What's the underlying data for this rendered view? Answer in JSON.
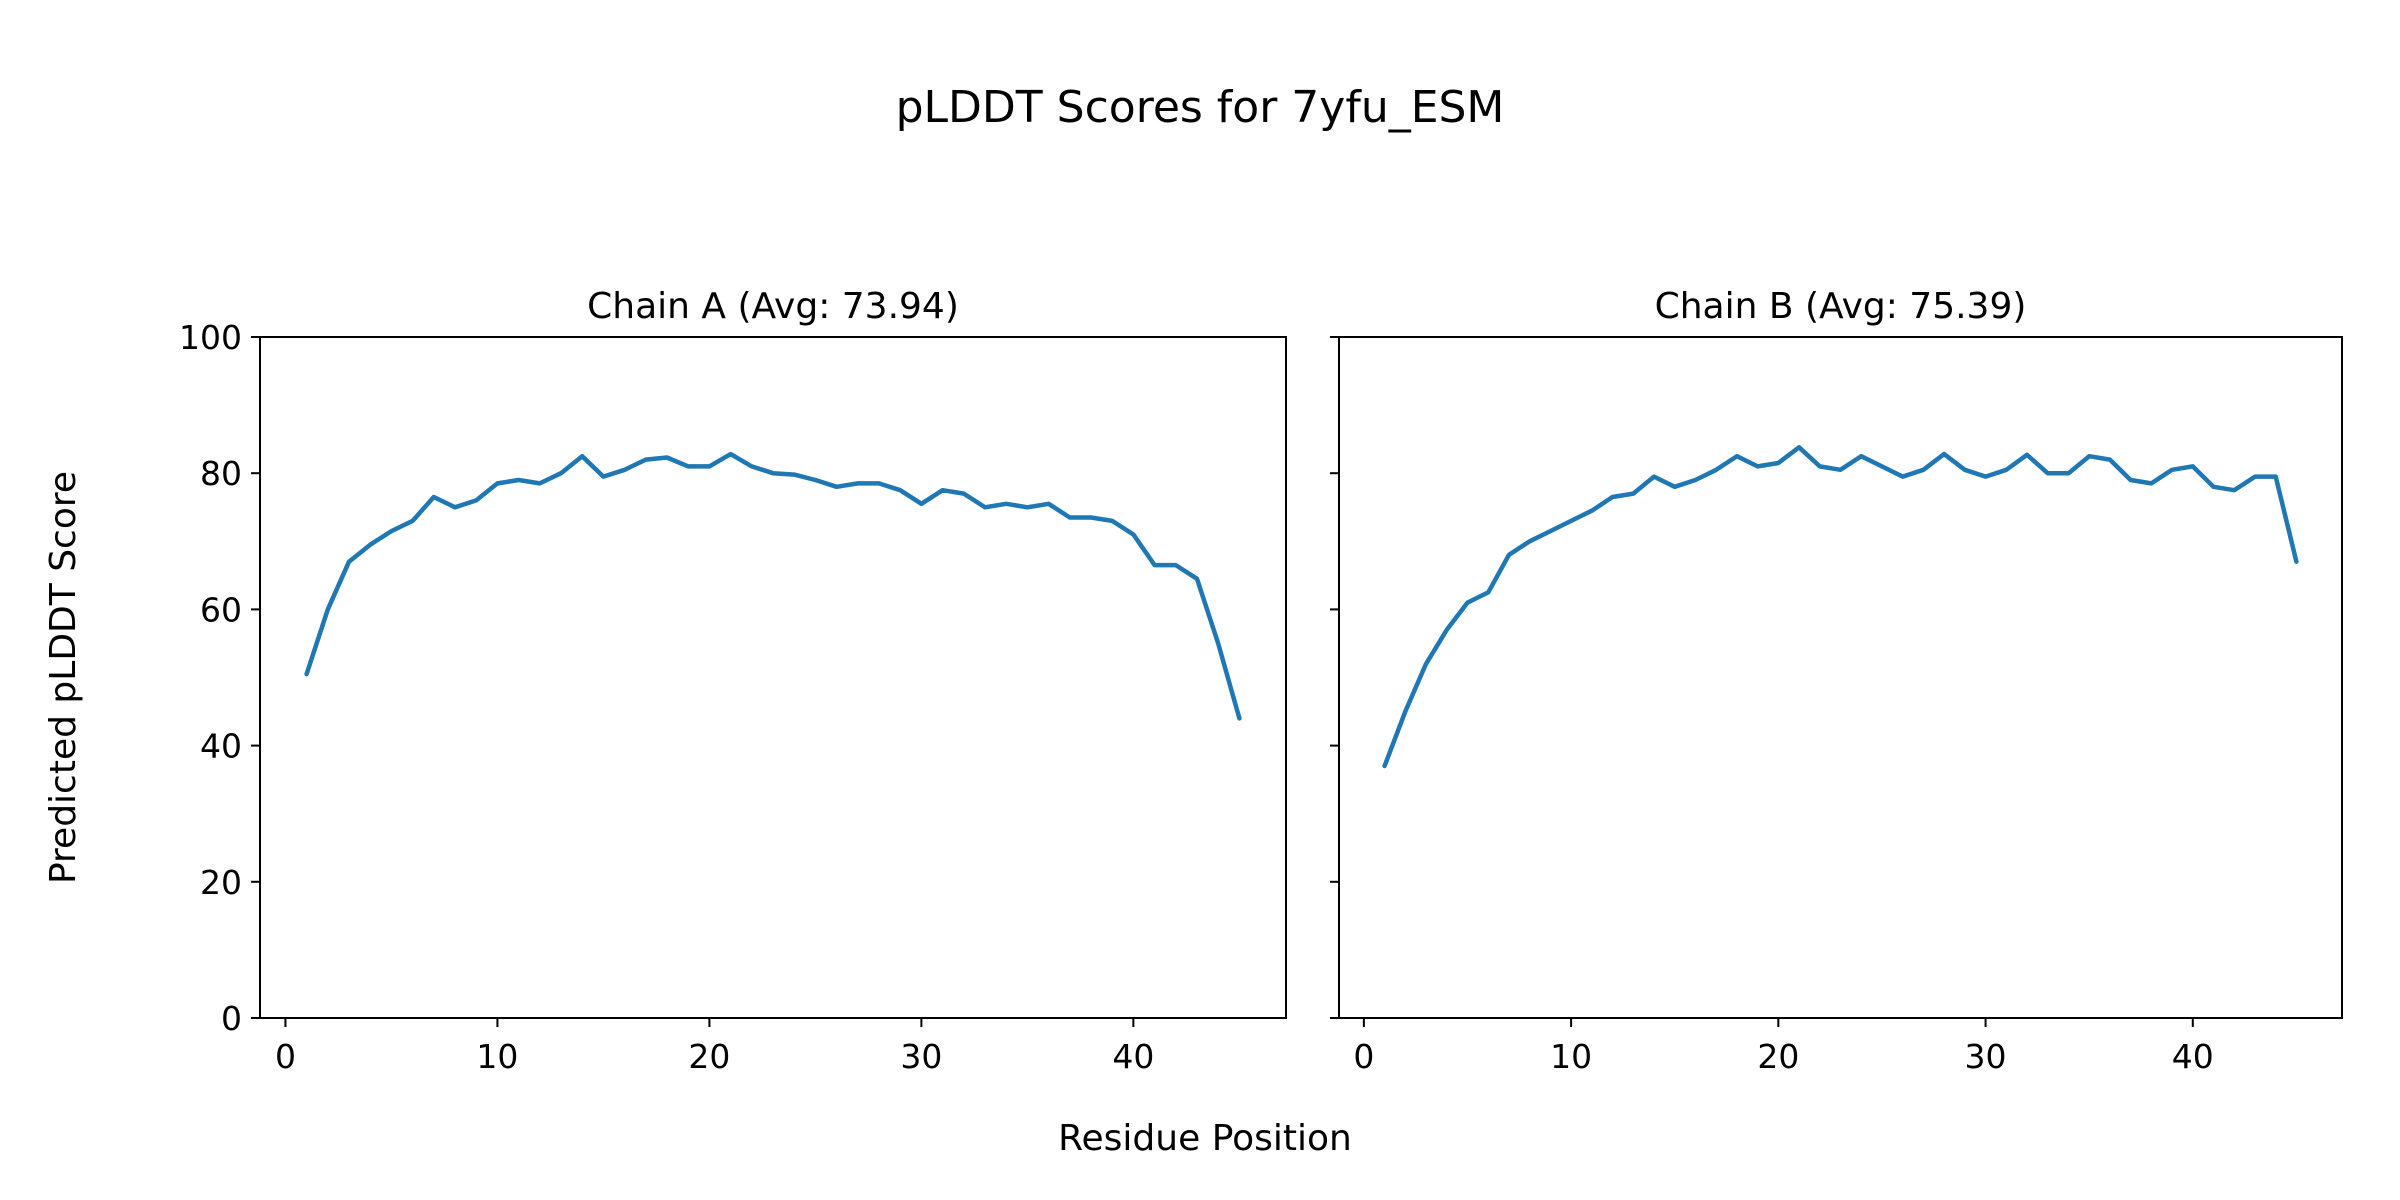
{
  "title": "pLDDT Scores for 7yfu_ESM",
  "chart_data": [
    {
      "type": "line",
      "title": "Chain A (Avg: 73.94)",
      "chain": "A",
      "avg": 73.94,
      "xlabel": "Residue Position",
      "ylabel": "Predicted pLDDT Score",
      "xlim": [
        -1.2,
        47.2
      ],
      "ylim": [
        0,
        100
      ],
      "xticks": [
        0,
        10,
        20,
        30,
        40
      ],
      "yticks": [
        0,
        20,
        40,
        60,
        80,
        100
      ],
      "grid": false,
      "line_color": "#1f77b4",
      "x": [
        1,
        2,
        3,
        4,
        5,
        6,
        7,
        8,
        9,
        10,
        11,
        12,
        13,
        14,
        15,
        16,
        17,
        18,
        19,
        20,
        21,
        22,
        23,
        24,
        25,
        26,
        27,
        28,
        29,
        30,
        31,
        32,
        33,
        34,
        35,
        36,
        37,
        38,
        39,
        40,
        41,
        42,
        43,
        44,
        45
      ],
      "y": [
        50.5,
        60,
        67,
        69.5,
        71.5,
        73,
        76.5,
        75,
        76,
        78.5,
        79,
        78.5,
        80,
        82.5,
        79.5,
        80.5,
        82,
        82.3,
        81,
        81,
        82.8,
        81,
        80,
        79.8,
        79,
        78,
        78.5,
        78.5,
        77.5,
        75.5,
        77.5,
        77,
        75,
        75.5,
        75,
        75.5,
        73.5,
        73.5,
        73,
        71,
        66.5,
        66.5,
        64.5,
        55,
        44
      ]
    },
    {
      "type": "line",
      "title": "Chain B (Avg: 75.39)",
      "chain": "B",
      "avg": 75.39,
      "xlabel": "Residue Position",
      "ylabel": "Predicted pLDDT Score",
      "xlim": [
        -1.2,
        47.2
      ],
      "ylim": [
        0,
        100
      ],
      "xticks": [
        0,
        10,
        20,
        30,
        40
      ],
      "yticks": [
        0,
        20,
        40,
        60,
        80,
        100
      ],
      "grid": false,
      "line_color": "#1f77b4",
      "x": [
        1,
        2,
        3,
        4,
        5,
        6,
        7,
        8,
        9,
        10,
        11,
        12,
        13,
        14,
        15,
        16,
        17,
        18,
        19,
        20,
        21,
        22,
        23,
        24,
        25,
        26,
        27,
        28,
        29,
        30,
        31,
        32,
        33,
        34,
        35,
        36,
        37,
        38,
        39,
        40,
        41,
        42,
        43,
        44,
        45
      ],
      "y": [
        37,
        45,
        52,
        57,
        61,
        62.5,
        68,
        70,
        71.5,
        73,
        74.5,
        76.5,
        77,
        79.5,
        78,
        79,
        80.5,
        82.5,
        81,
        81.5,
        83.8,
        81,
        80.5,
        82.5,
        81,
        79.5,
        80.5,
        82.8,
        80.5,
        79.5,
        80.5,
        82.7,
        80,
        80,
        82.5,
        82,
        79,
        78.5,
        80.5,
        81,
        78,
        77.5,
        79.5,
        79.5,
        67
      ]
    }
  ]
}
